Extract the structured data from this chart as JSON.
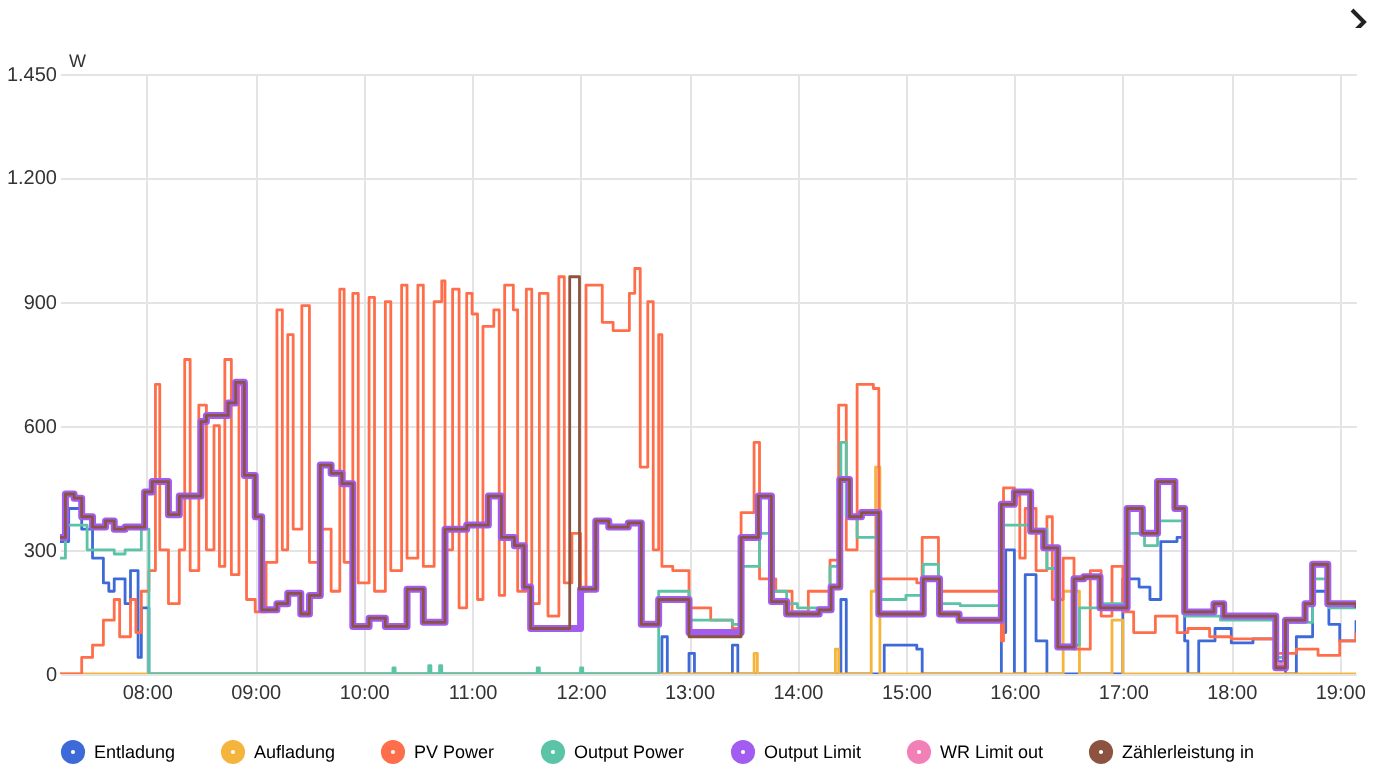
{
  "chart_data": {
    "type": "step",
    "ylabel": "W",
    "grid": true,
    "legend": "bottom",
    "marker": "none",
    "line_style": "solid",
    "xlim": [
      7.2,
      19.15
    ],
    "xticks": [
      {
        "value": 8,
        "label": "08:00"
      },
      {
        "value": 9,
        "label": "09:00"
      },
      {
        "value": 10,
        "label": "10:00"
      },
      {
        "value": 11,
        "label": "11:00"
      },
      {
        "value": 12,
        "label": "12:00"
      },
      {
        "value": 13,
        "label": "13:00"
      },
      {
        "value": 14,
        "label": "14:00"
      },
      {
        "value": 15,
        "label": "15:00"
      },
      {
        "value": 16,
        "label": "16:00"
      },
      {
        "value": 17,
        "label": "17:00"
      },
      {
        "value": 18,
        "label": "18:00"
      },
      {
        "value": 19,
        "label": "19:00"
      }
    ],
    "ylim": [
      0,
      1450
    ],
    "yticks": [
      0,
      300,
      600,
      900,
      {
        "value": 1200,
        "label": "1.200"
      },
      {
        "value": 1450,
        "label": "1.450"
      }
    ],
    "series": [
      {
        "name": "Entladung",
        "color": "#3e6ad8",
        "x": [
          7.2,
          7.28,
          7.4,
          7.5,
          7.6,
          7.65,
          7.7,
          7.8,
          7.85,
          7.92,
          7.95,
          8.02,
          12.72,
          12.75,
          12.8,
          13.0,
          13.05,
          13.4,
          13.45,
          14.4,
          14.45,
          14.8,
          15.1,
          15.15,
          15.88,
          15.92,
          16.0,
          16.1,
          16.2,
          16.3,
          17.0,
          17.15,
          17.25,
          17.35,
          17.5,
          17.57,
          17.6,
          17.7,
          17.85,
          18.0,
          18.2,
          18.4,
          18.5,
          18.6,
          18.75,
          18.9,
          19.0,
          19.15
        ],
        "values": [
          320,
          400,
          350,
          280,
          220,
          200,
          230,
          170,
          250,
          40,
          160,
          0,
          0,
          90,
          0,
          50,
          0,
          70,
          0,
          180,
          0,
          70,
          60,
          0,
          100,
          300,
          0,
          240,
          80,
          0,
          230,
          210,
          180,
          320,
          330,
          80,
          0,
          80,
          110,
          75,
          85,
          30,
          0,
          90,
          200,
          120,
          80,
          130
        ]
      },
      {
        "name": "Aufladung",
        "color": "#f5b53d",
        "x": [
          7.2,
          13.6,
          13.63,
          14.35,
          14.38,
          14.68,
          14.72,
          14.76,
          16.4,
          16.45,
          16.6,
          16.9,
          17.0,
          19.15
        ],
        "values": [
          0,
          50,
          0,
          60,
          0,
          200,
          500,
          0,
          0,
          200,
          0,
          130,
          0,
          0
        ]
      },
      {
        "name": "PV Power",
        "color": "#ff6e4a",
        "x": [
          7.2,
          7.35,
          7.4,
          7.5,
          7.6,
          7.7,
          7.75,
          7.85,
          7.9,
          7.95,
          8.02,
          8.08,
          8.12,
          8.2,
          8.3,
          8.35,
          8.4,
          8.48,
          8.55,
          8.62,
          8.67,
          8.72,
          8.78,
          8.85,
          8.92,
          9.0,
          9.1,
          9.2,
          9.25,
          9.3,
          9.35,
          9.43,
          9.5,
          9.6,
          9.7,
          9.78,
          9.82,
          9.9,
          9.95,
          10.05,
          10.1,
          10.2,
          10.25,
          10.35,
          10.4,
          10.5,
          10.55,
          10.65,
          10.72,
          10.75,
          10.82,
          10.88,
          10.95,
          11.0,
          11.05,
          11.1,
          11.2,
          11.25,
          11.3,
          11.38,
          11.42,
          11.5,
          11.55,
          11.62,
          11.7,
          11.8,
          11.85,
          11.92,
          12.0,
          12.05,
          12.2,
          12.3,
          12.45,
          12.5,
          12.55,
          12.62,
          12.67,
          12.72,
          12.75,
          12.85,
          13.0,
          13.2,
          13.4,
          13.48,
          13.6,
          13.65,
          13.8,
          13.95,
          14.1,
          14.3,
          14.38,
          14.45,
          14.55,
          14.7,
          14.75,
          15.0,
          15.1,
          15.15,
          15.3,
          15.88,
          15.9,
          16.0,
          16.05,
          16.1,
          16.2,
          16.3,
          16.35,
          16.45,
          16.55,
          16.7,
          16.8,
          16.9,
          17.0,
          17.1,
          17.3,
          17.5,
          17.6,
          17.8,
          18.0,
          18.2,
          18.4,
          18.6,
          18.8,
          19.0,
          19.15
        ],
        "values": [
          0,
          0,
          40,
          70,
          130,
          180,
          90,
          180,
          100,
          200,
          250,
          700,
          300,
          170,
          300,
          760,
          250,
          650,
          300,
          600,
          260,
          760,
          240,
          700,
          180,
          150,
          270,
          880,
          300,
          820,
          350,
          890,
          270,
          350,
          200,
          930,
          270,
          920,
          220,
          910,
          200,
          900,
          250,
          940,
          280,
          940,
          260,
          900,
          950,
          300,
          930,
          160,
          920,
          870,
          180,
          840,
          880,
          190,
          940,
          880,
          200,
          930,
          170,
          920,
          140,
          960,
          220,
          340,
          200,
          940,
          850,
          830,
          920,
          980,
          500,
          900,
          300,
          820,
          260,
          250,
          160,
          130,
          110,
          390,
          560,
          230,
          200,
          150,
          200,
          275,
          650,
          300,
          700,
          690,
          230,
          230,
          220,
          330,
          200,
          80,
          450,
          430,
          280,
          400,
          250,
          380,
          180,
          280,
          60,
          250,
          140,
          260,
          150,
          100,
          140,
          100,
          110,
          90,
          85,
          85,
          50,
          60,
          45,
          80,
          100
        ]
      },
      {
        "name": "Output Power",
        "color": "#5cc4a6",
        "x": [
          7.2,
          7.25,
          7.45,
          7.7,
          7.8,
          7.95,
          8.02,
          10.27,
          10.29,
          10.6,
          10.62,
          10.7,
          10.72,
          11.6,
          11.62,
          12.0,
          12.02,
          12.72,
          13.0,
          13.4,
          13.48,
          13.65,
          13.75,
          13.9,
          14.0,
          14.3,
          14.4,
          14.45,
          14.55,
          14.75,
          15.0,
          15.16,
          15.3,
          15.5,
          15.88,
          16.15,
          16.3,
          16.4,
          16.6,
          16.8,
          17.04,
          17.2,
          17.32,
          17.5,
          17.57,
          17.9,
          18.41,
          18.5,
          18.75,
          18.9,
          19.15
        ],
        "values": [
          280,
          360,
          300,
          290,
          300,
          350,
          0,
          15,
          0,
          20,
          0,
          20,
          0,
          15,
          0,
          15,
          0,
          200,
          130,
          120,
          260,
          340,
          200,
          170,
          160,
          260,
          560,
          380,
          330,
          180,
          190,
          265,
          170,
          165,
          360,
          350,
          255,
          70,
          160,
          170,
          340,
          310,
          370,
          370,
          140,
          130,
          40,
          125,
          230,
          160,
          160
        ]
      },
      {
        "name": "Output Limit",
        "color": "#a25cf0",
        "x": [
          7.2,
          7.25,
          7.33,
          7.4,
          7.5,
          7.62,
          7.7,
          7.8,
          7.98,
          8.05,
          8.2,
          8.3,
          8.5,
          8.55,
          8.75,
          8.82,
          8.9,
          9.0,
          9.06,
          9.2,
          9.3,
          9.42,
          9.5,
          9.6,
          9.7,
          9.8,
          9.9,
          10.05,
          10.2,
          10.4,
          10.55,
          10.75,
          10.95,
          11.15,
          11.27,
          11.39,
          11.48,
          11.54,
          12.0,
          12.14,
          12.26,
          12.44,
          12.56,
          12.72,
          13.0,
          13.48,
          13.64,
          13.76,
          13.9,
          14.2,
          14.31,
          14.39,
          14.48,
          14.59,
          14.75,
          15.16,
          15.31,
          15.49,
          15.88,
          16.0,
          16.15,
          16.27,
          16.4,
          16.55,
          16.64,
          16.79,
          17.04,
          17.18,
          17.32,
          17.48,
          17.57,
          17.84,
          17.93,
          18.41,
          18.5,
          18.68,
          18.75,
          18.89,
          19.15
        ],
        "values": [
          330,
          435,
          425,
          380,
          355,
          370,
          350,
          355,
          440,
          465,
          385,
          430,
          610,
          625,
          655,
          705,
          480,
          380,
          155,
          170,
          195,
          145,
          190,
          505,
          485,
          460,
          115,
          135,
          115,
          205,
          125,
          350,
          360,
          430,
          330,
          310,
          210,
          110,
          205,
          370,
          355,
          365,
          120,
          180,
          100,
          330,
          430,
          175,
          145,
          155,
          210,
          470,
          380,
          390,
          145,
          230,
          145,
          130,
          410,
          440,
          345,
          305,
          65,
          230,
          235,
          160,
          400,
          340,
          465,
          400,
          150,
          170,
          140,
          15,
          130,
          170,
          265,
          170,
          160
        ]
      },
      {
        "name": "WR Limit out",
        "color": "#f27fb6",
        "x": [
          18.41,
          18.49
        ],
        "values": [
          25,
          25
        ]
      },
      {
        "name": "Zählerleistung in",
        "color": "#8c5440",
        "x": [
          7.2,
          7.25,
          7.33,
          7.4,
          7.5,
          7.62,
          7.7,
          7.8,
          7.98,
          8.05,
          8.2,
          8.3,
          8.5,
          8.55,
          8.75,
          8.82,
          8.9,
          9.0,
          9.06,
          9.2,
          9.3,
          9.42,
          9.5,
          9.6,
          9.7,
          9.8,
          9.9,
          10.05,
          10.2,
          10.4,
          10.55,
          10.75,
          10.95,
          11.15,
          11.27,
          11.39,
          11.48,
          11.54,
          11.9,
          11.99,
          12.14,
          12.26,
          12.44,
          12.56,
          12.72,
          13.0,
          13.48,
          13.64,
          13.76,
          13.9,
          14.2,
          14.31,
          14.39,
          14.48,
          14.59,
          14.75,
          15.16,
          15.31,
          15.49,
          15.88,
          16.0,
          16.15,
          16.27,
          16.4,
          16.55,
          16.64,
          16.79,
          17.04,
          17.18,
          17.32,
          17.48,
          17.57,
          17.84,
          17.93,
          18.41,
          18.5,
          18.68,
          18.75,
          18.89,
          19.15
        ],
        "values": [
          330,
          435,
          425,
          380,
          355,
          370,
          350,
          355,
          440,
          465,
          385,
          430,
          610,
          625,
          655,
          705,
          480,
          380,
          155,
          170,
          195,
          145,
          190,
          505,
          485,
          460,
          115,
          135,
          115,
          205,
          125,
          350,
          360,
          430,
          330,
          310,
          210,
          110,
          960,
          205,
          370,
          355,
          365,
          120,
          180,
          90,
          330,
          430,
          175,
          145,
          155,
          210,
          470,
          380,
          390,
          145,
          230,
          145,
          130,
          410,
          440,
          345,
          305,
          65,
          230,
          235,
          160,
          400,
          340,
          465,
          400,
          150,
          170,
          140,
          15,
          130,
          170,
          265,
          170,
          160
        ]
      }
    ]
  }
}
